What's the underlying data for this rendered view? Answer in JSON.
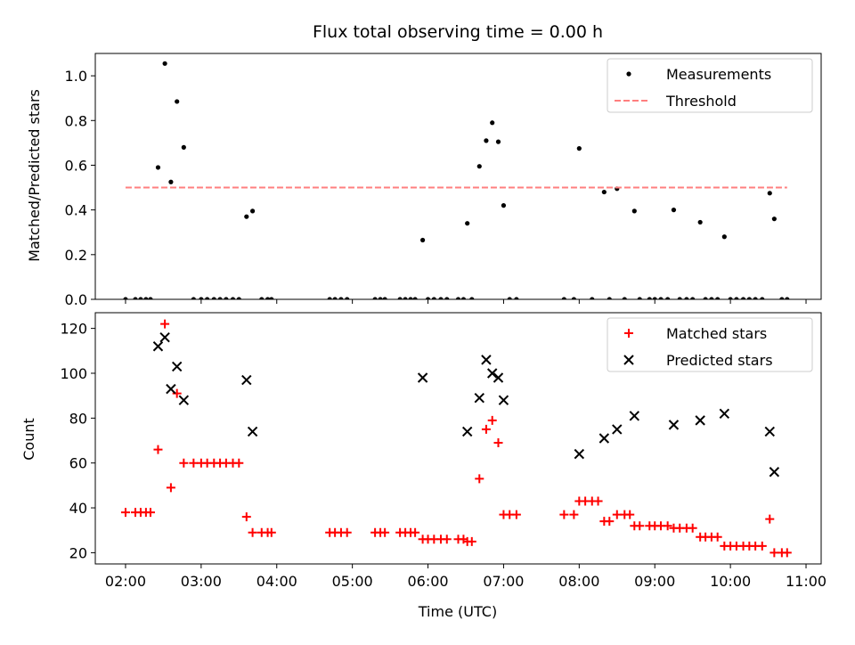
{
  "chart_data": [
    {
      "type": "scatter",
      "title": "Flux total observing time = 0.00 h",
      "xlabel": "",
      "ylabel": "Matched/Predicted stars",
      "ylim": [
        0,
        1.1
      ],
      "yticks": [
        "0.0",
        "0.2",
        "0.4",
        "0.6",
        "0.8",
        "1.0"
      ],
      "xlim_hours": [
        1.6,
        11.2
      ],
      "legend_position": "upper-right",
      "series": [
        {
          "name": "Measurements",
          "color": "#000000",
          "marker": "dot",
          "points": [
            [
              2.0,
              0
            ],
            [
              2.13,
              0
            ],
            [
              2.2,
              0
            ],
            [
              2.27,
              0
            ],
            [
              2.33,
              0
            ],
            [
              2.43,
              0.59
            ],
            [
              2.52,
              1.055
            ],
            [
              2.6,
              0.525
            ],
            [
              2.68,
              0.885
            ],
            [
              2.77,
              0.68
            ],
            [
              2.9,
              0
            ],
            [
              3.0,
              0
            ],
            [
              3.08,
              0
            ],
            [
              3.17,
              0
            ],
            [
              3.25,
              0
            ],
            [
              3.33,
              0
            ],
            [
              3.42,
              0
            ],
            [
              3.5,
              0
            ],
            [
              3.6,
              0.37
            ],
            [
              3.68,
              0.395
            ],
            [
              3.8,
              0
            ],
            [
              3.88,
              0
            ],
            [
              3.93,
              0
            ],
            [
              4.7,
              0
            ],
            [
              4.77,
              0
            ],
            [
              4.85,
              0
            ],
            [
              4.93,
              0
            ],
            [
              5.3,
              0
            ],
            [
              5.37,
              0
            ],
            [
              5.43,
              0
            ],
            [
              5.63,
              0
            ],
            [
              5.7,
              0
            ],
            [
              5.77,
              0
            ],
            [
              5.83,
              0
            ],
            [
              5.93,
              0.265
            ],
            [
              6.0,
              0
            ],
            [
              6.08,
              0
            ],
            [
              6.17,
              0
            ],
            [
              6.25,
              0
            ],
            [
              6.4,
              0
            ],
            [
              6.47,
              0
            ],
            [
              6.52,
              0.34
            ],
            [
              6.58,
              0
            ],
            [
              6.68,
              0.595
            ],
            [
              6.77,
              0.71
            ],
            [
              6.85,
              0.79
            ],
            [
              6.93,
              0.705
            ],
            [
              7.0,
              0.42
            ],
            [
              7.08,
              0
            ],
            [
              7.17,
              0
            ],
            [
              7.8,
              0
            ],
            [
              7.93,
              0
            ],
            [
              8.0,
              0.675
            ],
            [
              8.17,
              0
            ],
            [
              8.33,
              0.48
            ],
            [
              8.4,
              0
            ],
            [
              8.5,
              0.495
            ],
            [
              8.6,
              0
            ],
            [
              8.73,
              0.395
            ],
            [
              8.8,
              0
            ],
            [
              8.93,
              0
            ],
            [
              9.0,
              0
            ],
            [
              9.08,
              0
            ],
            [
              9.17,
              0
            ],
            [
              9.25,
              0.4
            ],
            [
              9.33,
              0
            ],
            [
              9.42,
              0
            ],
            [
              9.5,
              0
            ],
            [
              9.6,
              0.345
            ],
            [
              9.67,
              0
            ],
            [
              9.75,
              0
            ],
            [
              9.83,
              0
            ],
            [
              9.92,
              0.28
            ],
            [
              10.0,
              0
            ],
            [
              10.08,
              0
            ],
            [
              10.17,
              0
            ],
            [
              10.25,
              0
            ],
            [
              10.33,
              0
            ],
            [
              10.42,
              0
            ],
            [
              10.52,
              0.475
            ],
            [
              10.58,
              0.36
            ],
            [
              10.68,
              0
            ],
            [
              10.75,
              0
            ]
          ]
        },
        {
          "name": "Threshold",
          "color": "#ff7f7f",
          "style": "dashed",
          "points": [
            [
              2.0,
              0.5
            ],
            [
              10.75,
              0.5
            ]
          ]
        }
      ]
    },
    {
      "type": "scatter",
      "title": "",
      "xlabel": "Time (UTC)",
      "ylabel": "Count",
      "ylim": [
        15,
        127
      ],
      "yticks": [
        "20",
        "40",
        "60",
        "80",
        "100",
        "120"
      ],
      "xlim_hours": [
        1.6,
        11.2
      ],
      "xticks": [
        "02:00",
        "03:00",
        "04:00",
        "05:00",
        "06:00",
        "07:00",
        "08:00",
        "09:00",
        "10:00",
        "11:00"
      ],
      "legend_position": "upper-right",
      "series": [
        {
          "name": "Matched stars",
          "color": "#ff0000",
          "marker": "plus",
          "points": [
            [
              2.0,
              38
            ],
            [
              2.13,
              38
            ],
            [
              2.2,
              38
            ],
            [
              2.27,
              38
            ],
            [
              2.33,
              38
            ],
            [
              2.43,
              66
            ],
            [
              2.52,
              122
            ],
            [
              2.6,
              49
            ],
            [
              2.68,
              91
            ],
            [
              2.77,
              60
            ],
            [
              2.9,
              60
            ],
            [
              3.0,
              60
            ],
            [
              3.08,
              60
            ],
            [
              3.17,
              60
            ],
            [
              3.25,
              60
            ],
            [
              3.33,
              60
            ],
            [
              3.42,
              60
            ],
            [
              3.5,
              60
            ],
            [
              3.6,
              36
            ],
            [
              3.68,
              29
            ],
            [
              3.8,
              29
            ],
            [
              3.88,
              29
            ],
            [
              3.93,
              29
            ],
            [
              4.7,
              29
            ],
            [
              4.77,
              29
            ],
            [
              4.85,
              29
            ],
            [
              4.93,
              29
            ],
            [
              5.3,
              29
            ],
            [
              5.37,
              29
            ],
            [
              5.43,
              29
            ],
            [
              5.63,
              29
            ],
            [
              5.7,
              29
            ],
            [
              5.77,
              29
            ],
            [
              5.83,
              29
            ],
            [
              5.93,
              26
            ],
            [
              6.0,
              26
            ],
            [
              6.08,
              26
            ],
            [
              6.17,
              26
            ],
            [
              6.25,
              26
            ],
            [
              6.4,
              26
            ],
            [
              6.47,
              26
            ],
            [
              6.52,
              25
            ],
            [
              6.58,
              25
            ],
            [
              6.68,
              53
            ],
            [
              6.77,
              75
            ],
            [
              6.85,
              79
            ],
            [
              6.93,
              69
            ],
            [
              7.0,
              37
            ],
            [
              7.08,
              37
            ],
            [
              7.17,
              37
            ],
            [
              7.8,
              37
            ],
            [
              7.93,
              37
            ],
            [
              8.0,
              43
            ],
            [
              8.08,
              43
            ],
            [
              8.17,
              43
            ],
            [
              8.25,
              43
            ],
            [
              8.33,
              34
            ],
            [
              8.4,
              34
            ],
            [
              8.5,
              37
            ],
            [
              8.6,
              37
            ],
            [
              8.67,
              37
            ],
            [
              8.73,
              32
            ],
            [
              8.8,
              32
            ],
            [
              8.93,
              32
            ],
            [
              9.0,
              32
            ],
            [
              9.08,
              32
            ],
            [
              9.17,
              32
            ],
            [
              9.25,
              31
            ],
            [
              9.33,
              31
            ],
            [
              9.42,
              31
            ],
            [
              9.5,
              31
            ],
            [
              9.6,
              27
            ],
            [
              9.67,
              27
            ],
            [
              9.75,
              27
            ],
            [
              9.83,
              27
            ],
            [
              9.92,
              23
            ],
            [
              10.0,
              23
            ],
            [
              10.08,
              23
            ],
            [
              10.17,
              23
            ],
            [
              10.25,
              23
            ],
            [
              10.33,
              23
            ],
            [
              10.42,
              23
            ],
            [
              10.52,
              35
            ],
            [
              10.58,
              20
            ],
            [
              10.68,
              20
            ],
            [
              10.75,
              20
            ]
          ]
        },
        {
          "name": "Predicted stars",
          "color": "#000000",
          "marker": "x",
          "points": [
            [
              2.43,
              112
            ],
            [
              2.52,
              116
            ],
            [
              2.6,
              93
            ],
            [
              2.68,
              103
            ],
            [
              2.77,
              88
            ],
            [
              3.6,
              97
            ],
            [
              3.68,
              74
            ],
            [
              5.93,
              98
            ],
            [
              6.52,
              74
            ],
            [
              6.68,
              89
            ],
            [
              6.77,
              106
            ],
            [
              6.85,
              100
            ],
            [
              6.93,
              98
            ],
            [
              7.0,
              88
            ],
            [
              8.0,
              64
            ],
            [
              8.33,
              71
            ],
            [
              8.5,
              75
            ],
            [
              8.73,
              81
            ],
            [
              9.25,
              77
            ],
            [
              9.6,
              79
            ],
            [
              9.92,
              82
            ],
            [
              10.52,
              74
            ],
            [
              10.58,
              56
            ]
          ]
        }
      ]
    }
  ]
}
